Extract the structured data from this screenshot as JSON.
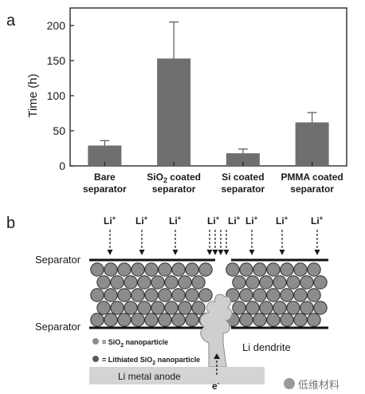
{
  "panel_a": {
    "label": "a"
  },
  "panel_b": {
    "label": "b",
    "li_ion": "Li",
    "li_ion_charge": "+",
    "separator_top": "Separator",
    "separator_bottom": "Separator",
    "dendrite_label": "Li dendrite",
    "anode_label": "Li metal anode",
    "electron_label": "e",
    "electron_charge": "-",
    "legend": [
      {
        "prefix": "= SiO",
        "sub": "2",
        "suffix": " nanoparticle",
        "color": "#8c8c8c"
      },
      {
        "prefix": "= Lithiated SiO",
        "sub": "2",
        "suffix": " nanoparticle",
        "color": "#5a5a5a"
      }
    ]
  },
  "watermark": {
    "text": "低维材料"
  },
  "chart_data": {
    "type": "bar",
    "ylabel": "Time (h)",
    "xlabel": "",
    "ylim": [
      0,
      225
    ],
    "yticks": [
      0,
      50,
      100,
      150,
      200
    ],
    "categories": [
      [
        "Bare",
        "separator"
      ],
      [
        "SiO2 coated",
        "separator"
      ],
      [
        "Si coated",
        "separator"
      ],
      [
        "PMMA coated",
        "separator"
      ]
    ],
    "values": [
      29,
      153,
      18,
      62
    ],
    "error": [
      7,
      52,
      6,
      14
    ],
    "bar_color": "#6f6f6f"
  }
}
